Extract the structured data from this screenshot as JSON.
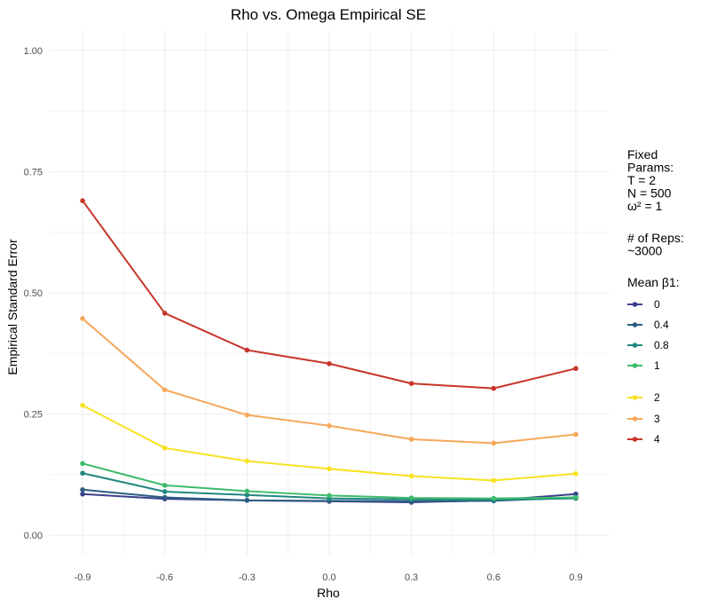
{
  "chart_data": {
    "type": "line",
    "title": "Rho vs. Omega Empirical SE",
    "xlabel": "Rho",
    "ylabel": "Empirical Standard Error",
    "x": [
      -0.9,
      -0.6,
      -0.3,
      0.0,
      0.3,
      0.6,
      0.9
    ],
    "x_tick_labels": [
      "-0.9",
      "-0.6",
      "-0.3",
      "0.0",
      "0.3",
      "0.6",
      "0.9"
    ],
    "xlim": [
      -1.02,
      1.02
    ],
    "y_ticks": [
      0,
      0.25,
      0.5,
      0.75,
      1.0
    ],
    "y_tick_labels": [
      "0.00",
      "0.25",
      "0.50",
      "0.75",
      "1.00"
    ],
    "ylim": [
      -0.04,
      1.04
    ],
    "grid": true,
    "legend_position": "right",
    "legend": {
      "fixed_params_lines": [
        "Fixed",
        "Params:",
        "T = 2",
        "N = 500",
        "ω² = 1"
      ],
      "reps_lines": [
        "# of Reps:",
        "~3000"
      ],
      "series_title": "Mean β1:"
    },
    "series": [
      {
        "name": "0",
        "color": "#3b3f8c",
        "values": [
          0.085,
          0.075,
          0.072,
          0.07,
          0.068,
          0.072,
          0.085
        ]
      },
      {
        "name": "0.4",
        "color": "#2c5d83",
        "values": [
          0.094,
          0.078,
          0.072,
          0.071,
          0.07,
          0.071,
          0.078
        ]
      },
      {
        "name": "0.8",
        "color": "#21887f",
        "values": [
          0.128,
          0.09,
          0.083,
          0.076,
          0.074,
          0.073,
          0.076
        ]
      },
      {
        "name": "1",
        "color": "#3dbb6c",
        "values": [
          0.148,
          0.103,
          0.091,
          0.082,
          0.077,
          0.076,
          0.078
        ]
      },
      {
        "name": "2",
        "color": "#f8e121",
        "values": [
          0.268,
          0.18,
          0.153,
          0.137,
          0.122,
          0.113,
          0.127
        ]
      },
      {
        "name": "3",
        "color": "#f6a75a",
        "values": [
          0.447,
          0.3,
          0.248,
          0.226,
          0.198,
          0.19,
          0.208
        ]
      },
      {
        "name": "4",
        "color": "#c8352a",
        "values": [
          0.69,
          0.458,
          0.382,
          0.354,
          0.313,
          0.303,
          0.344
        ]
      }
    ]
  }
}
